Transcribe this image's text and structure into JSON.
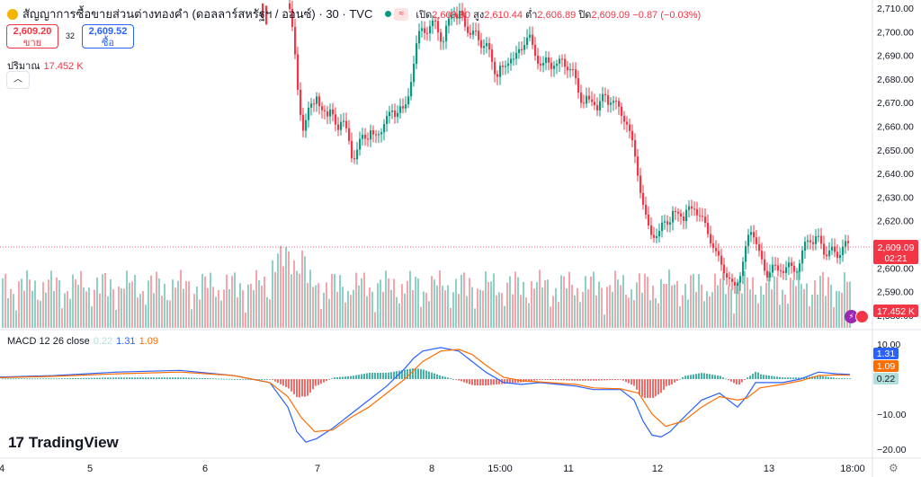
{
  "header": {
    "symbol": "สัญญาการซื้อขายส่วนต่างทองคำ (ดอลลาร์สหรัฐฯ / ออนซ์) · 30 · TVC",
    "open_label": "เปิด",
    "open": "2,609.90",
    "high_label": "สูง",
    "high": "2,610.44",
    "low_label": "ต่ำ",
    "low": "2,606.89",
    "close_label": "ปิด",
    "close": "2,609.09",
    "change": "−0.87 (−0.03%)"
  },
  "trade": {
    "sell_price": "2,609.20",
    "sell_label": "ขาย",
    "spread": "32",
    "buy_price": "2,609.52",
    "buy_label": "ซื้อ"
  },
  "volume_legend": {
    "label": "ปริมาณ",
    "value": "17.452 K"
  },
  "macd_legend": {
    "label": "MACD 12 26 close",
    "hist": "0.22",
    "macd": "1.31",
    "signal": "1.09"
  },
  "brand": {
    "name": "TradingView",
    "mark": "17"
  },
  "colors": {
    "up": "#089981",
    "down": "#f23645",
    "macd": "#2962ff",
    "signal": "#ff6d00"
  },
  "chart_data": [
    {
      "type": "candlestick",
      "x_ticks": [
        "4",
        "5",
        "6",
        "7",
        "8",
        "15:00",
        "11",
        "12",
        "13",
        "18:00"
      ],
      "y_ticks": [
        "2,710.00",
        "2,700.00",
        "2,690.00",
        "2,680.00",
        "2,670.00",
        "2,660.00",
        "2,650.00",
        "2,640.00",
        "2,630.00",
        "2,620.00",
        "2,610.00",
        "2,600.00",
        "2,590.00",
        "2,580.00"
      ],
      "ylim": [
        2578,
        2713
      ],
      "last_price": "2,609.09",
      "countdown": "02:21",
      "volume_last": "17.452 K",
      "close_path": [
        [
          320,
          2712
        ],
        [
          324,
          2705
        ],
        [
          327,
          2698
        ],
        [
          330,
          2680
        ],
        [
          333,
          2668
        ],
        [
          336,
          2655
        ],
        [
          339,
          2660
        ],
        [
          342,
          2668
        ],
        [
          345,
          2672
        ],
        [
          348,
          2668
        ],
        [
          352,
          2671
        ],
        [
          356,
          2667
        ],
        [
          360,
          2669
        ],
        [
          364,
          2664
        ],
        [
          368,
          2666
        ],
        [
          372,
          2662
        ],
        [
          376,
          2660
        ],
        [
          380,
          2663
        ],
        [
          384,
          2659
        ],
        [
          388,
          2654
        ],
        [
          392,
          2646
        ],
        [
          396,
          2648
        ],
        [
          400,
          2653
        ],
        [
          404,
          2657
        ],
        [
          408,
          2655
        ],
        [
          412,
          2658
        ],
        [
          416,
          2654
        ],
        [
          420,
          2657
        ],
        [
          424,
          2659
        ],
        [
          428,
          2662
        ],
        [
          432,
          2664
        ],
        [
          436,
          2667
        ],
        [
          440,
          2665
        ],
        [
          444,
          2668
        ],
        [
          448,
          2666
        ],
        [
          452,
          2670
        ],
        [
          456,
          2678
        ],
        [
          460,
          2686
        ],
        [
          464,
          2696
        ],
        [
          468,
          2703
        ],
        [
          472,
          2701
        ],
        [
          476,
          2699
        ],
        [
          480,
          2703
        ],
        [
          484,
          2705
        ],
        [
          488,
          2700
        ],
        [
          492,
          2693
        ],
        [
          496,
          2701
        ],
        [
          500,
          2707
        ],
        [
          504,
          2710
        ],
        [
          508,
          2705
        ],
        [
          512,
          2708
        ],
        [
          516,
          2704
        ],
        [
          520,
          2701
        ],
        [
          524,
          2698
        ],
        [
          528,
          2700
        ],
        [
          532,
          2697
        ],
        [
          536,
          2694
        ],
        [
          540,
          2695
        ],
        [
          544,
          2691
        ],
        [
          548,
          2686
        ],
        [
          552,
          2681
        ],
        [
          556,
          2685
        ],
        [
          560,
          2683
        ],
        [
          564,
          2687
        ],
        [
          568,
          2690
        ],
        [
          572,
          2688
        ],
        [
          576,
          2691
        ],
        [
          580,
          2693
        ],
        [
          584,
          2697
        ],
        [
          588,
          2699
        ],
        [
          592,
          2693
        ],
        [
          596,
          2689
        ],
        [
          600,
          2687
        ],
        [
          604,
          2686
        ],
        [
          608,
          2688
        ],
        [
          612,
          2685
        ],
        [
          616,
          2687
        ],
        [
          620,
          2686
        ],
        [
          624,
          2688
        ],
        [
          628,
          2686
        ],
        [
          632,
          2685
        ],
        [
          636,
          2684
        ],
        [
          640,
          2679
        ],
        [
          644,
          2673
        ],
        [
          648,
          2670
        ],
        [
          652,
          2672
        ],
        [
          656,
          2669
        ],
        [
          660,
          2671
        ],
        [
          664,
          2668
        ],
        [
          668,
          2671
        ],
        [
          672,
          2673
        ],
        [
          676,
          2670
        ],
        [
          680,
          2672
        ],
        [
          684,
          2670
        ],
        [
          688,
          2667
        ],
        [
          692,
          2664
        ],
        [
          696,
          2663
        ],
        [
          700,
          2657
        ],
        [
          704,
          2651
        ],
        [
          708,
          2643
        ],
        [
          712,
          2633
        ],
        [
          716,
          2624
        ],
        [
          720,
          2618
        ],
        [
          724,
          2615
        ],
        [
          728,
          2614
        ],
        [
          732,
          2613
        ],
        [
          736,
          2618
        ],
        [
          740,
          2621
        ],
        [
          744,
          2619
        ],
        [
          748,
          2623
        ],
        [
          752,
          2622
        ],
        [
          756,
          2624
        ],
        [
          760,
          2621
        ],
        [
          764,
          2625
        ],
        [
          768,
          2624
        ],
        [
          772,
          2626
        ],
        [
          776,
          2623
        ],
        [
          780,
          2621
        ],
        [
          784,
          2618
        ],
        [
          788,
          2614
        ],
        [
          792,
          2610
        ],
        [
          796,
          2606
        ],
        [
          800,
          2603
        ],
        [
          804,
          2600
        ],
        [
          808,
          2597
        ],
        [
          812,
          2594
        ],
        [
          816,
          2591
        ],
        [
          820,
          2595
        ],
        [
          824,
          2599
        ],
        [
          828,
          2606
        ],
        [
          832,
          2613
        ],
        [
          836,
          2617
        ],
        [
          840,
          2612
        ],
        [
          844,
          2606
        ],
        [
          848,
          2601
        ],
        [
          852,
          2597
        ],
        [
          856,
          2599
        ],
        [
          860,
          2601
        ],
        [
          864,
          2598
        ],
        [
          868,
          2600
        ],
        [
          872,
          2599
        ],
        [
          876,
          2601
        ],
        [
          880,
          2600
        ],
        [
          884,
          2599
        ],
        [
          888,
          2601
        ],
        [
          892,
          2606
        ],
        [
          896,
          2611
        ],
        [
          900,
          2613
        ],
        [
          904,
          2611
        ],
        [
          908,
          2613
        ],
        [
          912,
          2611
        ],
        [
          916,
          2607
        ],
        [
          920,
          2606
        ],
        [
          924,
          2608
        ],
        [
          928,
          2606
        ],
        [
          932,
          2605
        ],
        [
          936,
          2609
        ],
        [
          940,
          2610
        ],
        [
          944,
          2609
        ]
      ]
    },
    {
      "type": "line",
      "title": "MACD 12 26 close",
      "y_ticks": [
        "10.00",
        "0.00",
        "−10.00",
        "−20.00"
      ],
      "ylim": [
        -22,
        12
      ],
      "last_values": {
        "macd": "1.31",
        "signal": "1.09",
        "histogram": "0.22"
      },
      "series": [
        {
          "name": "MACD",
          "points": [
            [
              0,
              0.6
            ],
            [
              60,
              1
            ],
            [
              130,
              2
            ],
            [
              200,
              2.5
            ],
            [
              260,
              1
            ],
            [
              300,
              -1
            ],
            [
              320,
              -8
            ],
            [
              330,
              -15
            ],
            [
              340,
              -18
            ],
            [
              352,
              -17
            ],
            [
              370,
              -14
            ],
            [
              390,
              -10
            ],
            [
              410,
              -6
            ],
            [
              430,
              -2
            ],
            [
              450,
              3
            ],
            [
              460,
              6
            ],
            [
              470,
              8
            ],
            [
              490,
              9
            ],
            [
              510,
              8
            ],
            [
              525,
              5
            ],
            [
              540,
              2
            ],
            [
              560,
              -1
            ],
            [
              580,
              -1.5
            ],
            [
              600,
              -1
            ],
            [
              640,
              -2
            ],
            [
              660,
              -3
            ],
            [
              690,
              -3
            ],
            [
              705,
              -6
            ],
            [
              715,
              -12
            ],
            [
              725,
              -16
            ],
            [
              735,
              -16.5
            ],
            [
              745,
              -15
            ],
            [
              760,
              -11
            ],
            [
              780,
              -6
            ],
            [
              800,
              -4
            ],
            [
              820,
              -8
            ],
            [
              830,
              -5
            ],
            [
              840,
              -1
            ],
            [
              870,
              -1
            ],
            [
              890,
              0
            ],
            [
              900,
              1
            ],
            [
              910,
              2
            ],
            [
              930,
              1.5
            ],
            [
              945,
              1.3
            ]
          ]
        },
        {
          "name": "Signal",
          "points": [
            [
              0,
              0.4
            ],
            [
              60,
              0.8
            ],
            [
              130,
              1.5
            ],
            [
              200,
              2
            ],
            [
              260,
              1
            ],
            [
              300,
              -1
            ],
            [
              320,
              -5
            ],
            [
              335,
              -11
            ],
            [
              350,
              -15
            ],
            [
              370,
              -14.5
            ],
            [
              390,
              -11
            ],
            [
              410,
              -8
            ],
            [
              430,
              -4
            ],
            [
              450,
              0
            ],
            [
              470,
              5
            ],
            [
              490,
              8
            ],
            [
              510,
              8.5
            ],
            [
              525,
              7
            ],
            [
              540,
              4
            ],
            [
              560,
              0.5
            ],
            [
              580,
              -0.5
            ],
            [
              600,
              -0.8
            ],
            [
              640,
              -1.5
            ],
            [
              660,
              -2.5
            ],
            [
              690,
              -2.8
            ],
            [
              710,
              -4
            ],
            [
              725,
              -10
            ],
            [
              740,
              -13.5
            ],
            [
              760,
              -12
            ],
            [
              780,
              -8
            ],
            [
              800,
              -5
            ],
            [
              820,
              -6
            ],
            [
              830,
              -5.5
            ],
            [
              845,
              -2.5
            ],
            [
              870,
              -1.5
            ],
            [
              890,
              -0.5
            ],
            [
              910,
              1
            ],
            [
              930,
              1.2
            ],
            [
              945,
              1.09
            ]
          ]
        }
      ]
    }
  ]
}
